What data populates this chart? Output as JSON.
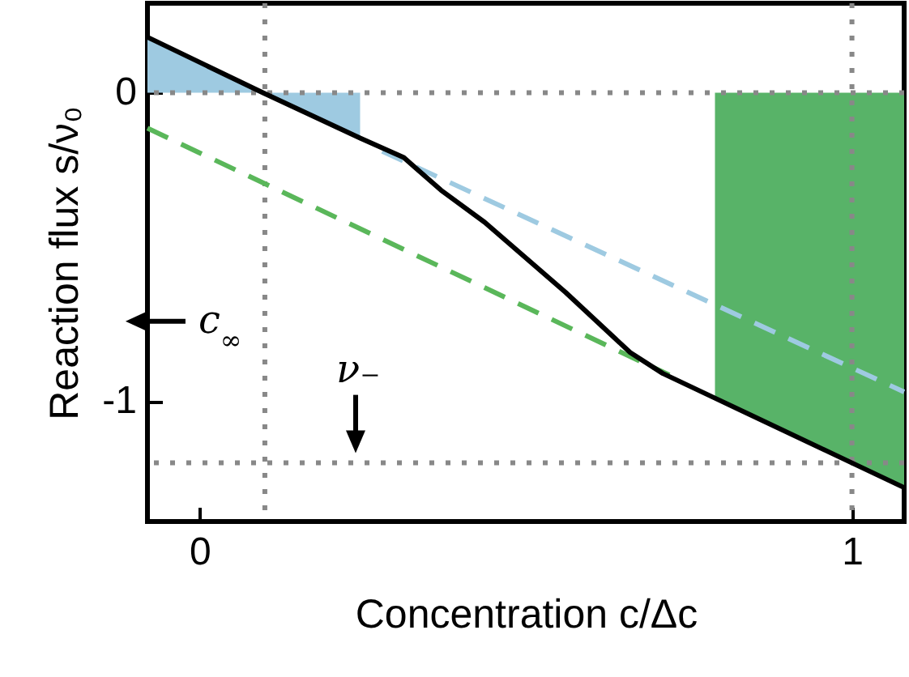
{
  "chart_data": {
    "type": "line",
    "xlabel": "Concentration  c/Δc",
    "ylabel": "Reaction flux  s/ν₀",
    "xlim": [
      -0.08,
      1.08
    ],
    "ylim": [
      -1.39,
      0.29
    ],
    "xticks": [
      0,
      1
    ],
    "yticks": [
      0,
      -1
    ],
    "series": [
      {
        "type": "area",
        "color": "#9ecae1",
        "x": [
          -0.08,
          0.097,
          0.246
        ],
        "values": [
          0.18,
          0,
          -0.147
        ]
      },
      {
        "type": "area",
        "color": "#58b368",
        "x": [
          0.79,
          1.0,
          1.08
        ],
        "values": [
          -0.99,
          -1.2,
          -1.28
        ]
      },
      {
        "color": "#9ecae1",
        "line_style": "dashed",
        "x": [
          0.28,
          1.08
        ],
        "values": [
          -0.19,
          -0.97
        ]
      },
      {
        "color": "#5ab75a",
        "line_style": "dashed",
        "x": [
          -0.08,
          0.72
        ],
        "values": [
          -0.115,
          -0.915
        ]
      },
      {
        "color": "#000000",
        "x": [
          -0.08,
          0.097,
          0.246,
          0.313,
          0.37,
          0.437,
          0.561,
          0.66,
          0.71,
          0.79,
          1.0,
          1.08
        ],
        "values": [
          0.18,
          0,
          -0.147,
          -0.21,
          -0.316,
          -0.42,
          -0.647,
          -0.842,
          -0.91,
          -0.99,
          -1.2,
          -1.28
        ]
      }
    ],
    "ref_lines": [
      {
        "axis": "x",
        "value": 0.1,
        "label": "c$_{∞}$",
        "color": "#888888",
        "line_style": "dotted"
      },
      {
        "axis": "x",
        "value": 1,
        "color": "#888888",
        "line_style": "dotted"
      },
      {
        "axis": "y",
        "value": 0,
        "color": "#888888",
        "line_style": "dotted"
      },
      {
        "axis": "y",
        "value": -1.2,
        "label": "ν₋",
        "color": "#888888",
        "line_style": "dotted"
      }
    ]
  }
}
